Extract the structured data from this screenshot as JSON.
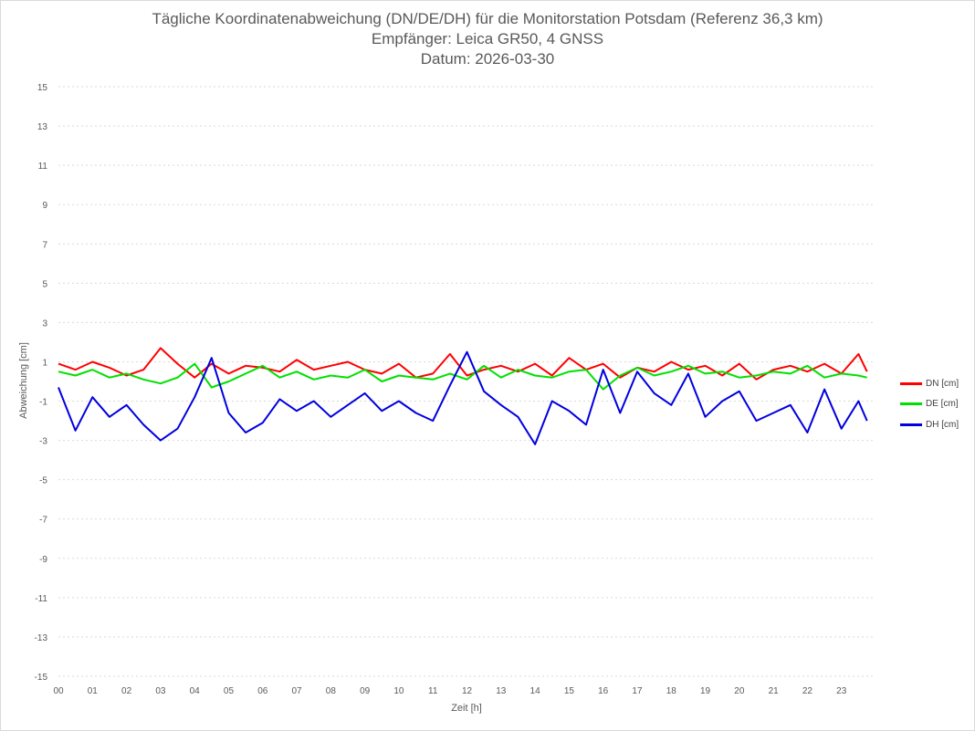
{
  "chart_data": {
    "type": "line",
    "title": "Tägliche Koordinatenabweichung (DN/DE/DH) für die Monitorstation Potsdam (Referenz 36,3 km)",
    "subtitle": "Empfänger: Leica GR50, 4 GNSS",
    "date_line": "Datum: 2026-03-30",
    "xlabel": "Zeit [h]",
    "ylabel": "Abweichung [cm]",
    "ylim": [
      -15,
      15
    ],
    "y_ticks": [
      "15",
      "13",
      "11",
      "9",
      "7",
      "5",
      "3",
      "1",
      "-1",
      "-3",
      "-5",
      "-7",
      "-9",
      "-11",
      "-13",
      "-15"
    ],
    "xlim": [
      0,
      24
    ],
    "x_ticks": [
      "00",
      "01",
      "02",
      "03",
      "04",
      "05",
      "06",
      "07",
      "08",
      "09",
      "10",
      "11",
      "12",
      "13",
      "14",
      "15",
      "16",
      "17",
      "18",
      "19",
      "20",
      "21",
      "22",
      "23"
    ],
    "grid": "horizontal dashed",
    "legend_position": "right",
    "x": [
      0,
      0.5,
      1,
      1.5,
      2,
      2.5,
      3,
      3.5,
      4,
      4.5,
      5,
      5.5,
      6,
      6.5,
      7,
      7.5,
      8,
      8.5,
      9,
      9.5,
      10,
      10.5,
      11,
      11.5,
      12,
      12.5,
      13,
      13.5,
      14,
      14.5,
      15,
      15.5,
      16,
      16.5,
      17,
      17.5,
      18,
      18.5,
      19,
      19.5,
      20,
      20.5,
      21,
      21.5,
      22,
      22.5,
      23,
      23.5,
      23.75
    ],
    "series": [
      {
        "name": "DN [cm]",
        "color": "#ff0000",
        "values": [
          0.9,
          0.6,
          1.0,
          0.7,
          0.3,
          0.6,
          1.7,
          0.9,
          0.2,
          0.9,
          0.4,
          0.8,
          0.7,
          0.5,
          1.1,
          0.6,
          0.8,
          1.0,
          0.6,
          0.4,
          0.9,
          0.2,
          0.4,
          1.4,
          0.3,
          0.6,
          0.8,
          0.5,
          0.9,
          0.3,
          1.2,
          0.6,
          0.9,
          0.2,
          0.7,
          0.5,
          1.0,
          0.6,
          0.8,
          0.3,
          0.9,
          0.1,
          0.6,
          0.8,
          0.5,
          0.9,
          0.4,
          1.4,
          0.5
        ]
      },
      {
        "name": "DE [cm]",
        "color": "#00e000",
        "values": [
          0.5,
          0.3,
          0.6,
          0.2,
          0.4,
          0.1,
          -0.1,
          0.2,
          0.9,
          -0.3,
          0.0,
          0.4,
          0.8,
          0.2,
          0.5,
          0.1,
          0.3,
          0.2,
          0.6,
          0.0,
          0.3,
          0.2,
          0.1,
          0.4,
          0.1,
          0.8,
          0.2,
          0.6,
          0.3,
          0.2,
          0.5,
          0.6,
          -0.4,
          0.3,
          0.7,
          0.3,
          0.5,
          0.8,
          0.4,
          0.5,
          0.2,
          0.3,
          0.5,
          0.4,
          0.8,
          0.2,
          0.4,
          0.3,
          0.2
        ]
      },
      {
        "name": "DH [cm]",
        "color": "#0000e0",
        "values": [
          -0.3,
          -2.5,
          -0.8,
          -1.8,
          -1.2,
          -2.2,
          -3.0,
          -2.4,
          -0.8,
          1.2,
          -1.6,
          -2.6,
          -2.1,
          -0.9,
          -1.5,
          -1.0,
          -1.8,
          -1.2,
          -0.6,
          -1.5,
          -1.0,
          -1.6,
          -2.0,
          -0.2,
          1.5,
          -0.5,
          -1.2,
          -1.8,
          -3.2,
          -1.0,
          -1.5,
          -2.2,
          0.6,
          -1.6,
          0.5,
          -0.6,
          -1.2,
          0.4,
          -1.8,
          -1.0,
          -0.5,
          -2.0,
          -1.6,
          -1.2,
          -2.6,
          -0.4,
          -2.4,
          -1.0,
          -2.0
        ]
      }
    ]
  },
  "legend": {
    "items": [
      {
        "label": "DN [cm]",
        "color": "#ff0000"
      },
      {
        "label": "DE [cm]",
        "color": "#00e000"
      },
      {
        "label": "DH [cm]",
        "color": "#0000e0"
      }
    ]
  }
}
